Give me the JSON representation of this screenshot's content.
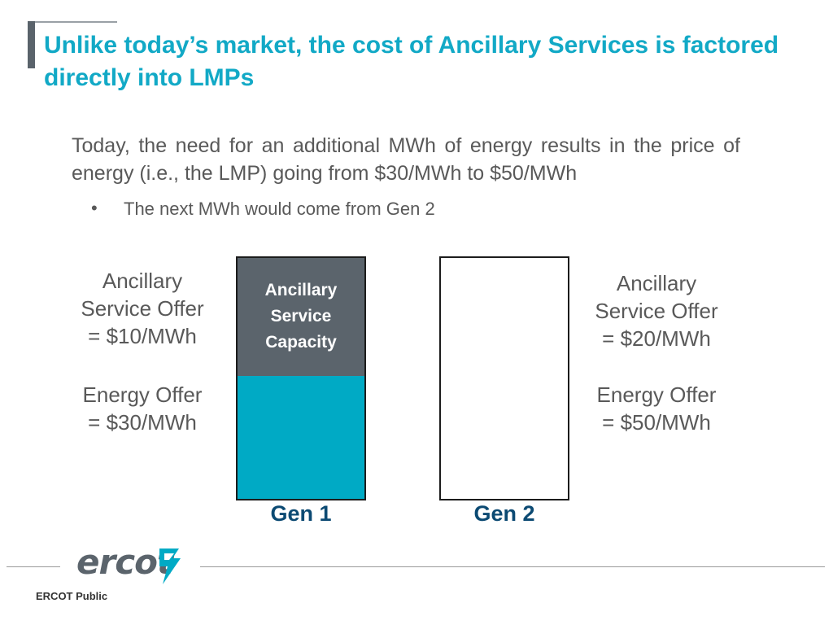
{
  "title": "Unlike today’s market, the cost of Ancillary Services is factored directly into LMPs",
  "intro": "Today, the need for an additional MWh of energy results in the price of energy (i.e., the LMP) going from $30/MWh to $50/MWh",
  "bullets": [
    "The next MWh would come from Gen 2"
  ],
  "left_offers": {
    "as_lines": [
      "Ancillary",
      "Service Offer",
      "= $10/MWh"
    ],
    "energy_lines": [
      "Energy Offer",
      "= $30/MWh"
    ]
  },
  "right_offers": {
    "as_lines": [
      "Ancillary",
      "Service Offer",
      "= $20/MWh"
    ],
    "energy_lines": [
      "Energy Offer",
      "= $50/MWh"
    ]
  },
  "generators": [
    {
      "label": "Gen 1",
      "segments": [
        {
          "label_lines": [
            "Ancillary",
            "Service",
            "Capacity"
          ],
          "fraction": 0.49,
          "color": "#5b646c"
        },
        {
          "label_lines": [],
          "fraction": 0.51,
          "color": "#00aac5"
        }
      ]
    },
    {
      "label": "Gen 2",
      "segments": []
    }
  ],
  "logo": {
    "text": "ercot"
  },
  "footer": {
    "classification": "ERCOT Public"
  },
  "colors": {
    "title": "#12a9c6",
    "accent": "#00aac5",
    "gray": "#5b646c",
    "gen_label": "#0c4a73"
  }
}
